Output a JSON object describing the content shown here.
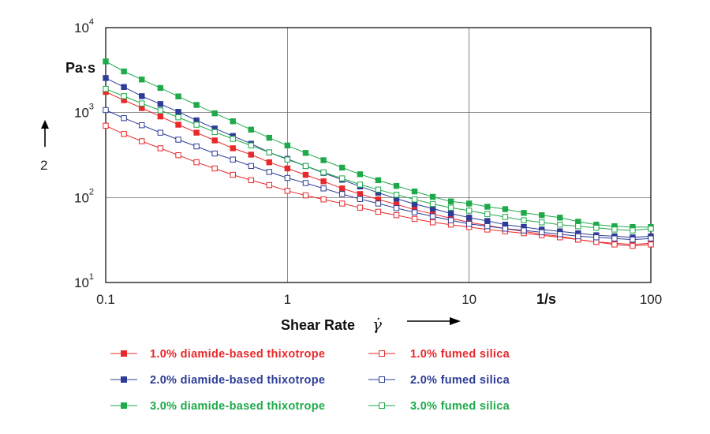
{
  "chart_data": {
    "type": "line",
    "scale": {
      "x": "log",
      "y": "log"
    },
    "xlim": [
      0.1,
      100
    ],
    "ylim": [
      10,
      10000
    ],
    "x_ticks": [
      {
        "value": 0.1,
        "label": "0.1"
      },
      {
        "value": 1,
        "label": "1"
      },
      {
        "value": 10,
        "label": "10"
      },
      {
        "value": 100,
        "label": "100"
      }
    ],
    "y_ticks": [
      {
        "value": 10,
        "base": "10",
        "exp": "1"
      },
      {
        "value": 100,
        "base": "10",
        "exp": "2"
      },
      {
        "value": 1000,
        "base": "10",
        "exp": "3"
      },
      {
        "value": 10000,
        "base": "10",
        "exp": "4"
      }
    ],
    "x_unit": "1/s",
    "y_unit": "Pa·s",
    "xlabel": "Shear Rate",
    "xlabel_symbol": "γ̇",
    "y_side_label": "2",
    "grid": true,
    "series": [
      {
        "name": "1.0% diamide-based thixotrope",
        "color": "#e8282b",
        "filled": true,
        "x": [
          0.1,
          0.126,
          0.158,
          0.2,
          0.251,
          0.316,
          0.398,
          0.501,
          0.631,
          0.794,
          1,
          1.26,
          1.58,
          2,
          2.51,
          3.16,
          3.98,
          5.01,
          6.31,
          7.94,
          10,
          12.6,
          15.8,
          20,
          25.1,
          31.6,
          39.8,
          50.1,
          63.1,
          79.4,
          100
        ],
        "y": [
          1750,
          1400,
          1130,
          900,
          720,
          580,
          470,
          380,
          320,
          260,
          220,
          185,
          155,
          128,
          110,
          95,
          83,
          72,
          64,
          57,
          51,
          47,
          43,
          40,
          37,
          35,
          32,
          30,
          29,
          28,
          29
        ]
      },
      {
        "name": "2.0% diamide-based thixotrope",
        "color": "#2d3c96",
        "filled": true,
        "x": [
          0.1,
          0.126,
          0.158,
          0.2,
          0.251,
          0.316,
          0.398,
          0.501,
          0.631,
          0.794,
          1,
          1.26,
          1.58,
          2,
          2.51,
          3.16,
          3.98,
          5.01,
          6.31,
          7.94,
          10,
          12.6,
          15.8,
          20,
          25.1,
          31.6,
          39.8,
          50.1,
          63.1,
          79.4,
          100
        ],
        "y": [
          2550,
          2000,
          1560,
          1260,
          1020,
          810,
          650,
          530,
          430,
          340,
          285,
          235,
          195,
          162,
          135,
          114,
          97,
          84,
          74,
          65,
          58,
          53,
          48,
          45,
          42,
          40,
          38,
          36,
          35,
          34,
          35
        ]
      },
      {
        "name": "3.0% diamide-based thixotrope",
        "color": "#1eaa4a",
        "filled": true,
        "x": [
          0.1,
          0.126,
          0.158,
          0.2,
          0.251,
          0.316,
          0.398,
          0.501,
          0.631,
          0.794,
          1,
          1.26,
          1.58,
          2,
          2.51,
          3.16,
          3.98,
          5.01,
          6.31,
          7.94,
          10,
          12.6,
          15.8,
          20,
          25.1,
          31.6,
          39.8,
          50.1,
          63.1,
          79.4,
          100
        ],
        "y": [
          4000,
          3050,
          2450,
          1950,
          1550,
          1230,
          980,
          790,
          630,
          505,
          410,
          335,
          275,
          225,
          188,
          160,
          137,
          118,
          102,
          90,
          85,
          78,
          73,
          66,
          62,
          58,
          52,
          48,
          46,
          45,
          45
        ]
      },
      {
        "name": "1.0% fumed silica",
        "color": "#e8282b",
        "filled": false,
        "x": [
          0.1,
          0.126,
          0.158,
          0.2,
          0.251,
          0.316,
          0.398,
          0.501,
          0.631,
          0.794,
          1,
          1.26,
          1.58,
          2,
          2.51,
          3.16,
          3.98,
          5.01,
          6.31,
          7.94,
          10,
          12.6,
          15.8,
          20,
          25.1,
          31.6,
          39.8,
          50.1,
          63.1,
          79.4,
          100
        ],
        "y": [
          700,
          560,
          460,
          380,
          315,
          260,
          220,
          185,
          160,
          140,
          120,
          106,
          95,
          85,
          76,
          68,
          62,
          56,
          51,
          48,
          45,
          42,
          40,
          38,
          36,
          34,
          32,
          30,
          28,
          27,
          28
        ]
      },
      {
        "name": "2.0% fumed silica",
        "color": "#2d3c96",
        "filled": false,
        "x": [
          0.1,
          0.126,
          0.158,
          0.2,
          0.251,
          0.316,
          0.398,
          0.501,
          0.631,
          0.794,
          1,
          1.26,
          1.58,
          2,
          2.51,
          3.16,
          3.98,
          5.01,
          6.31,
          7.94,
          10,
          12.6,
          15.8,
          20,
          25.1,
          31.6,
          39.8,
          50.1,
          63.1,
          79.4,
          100
        ],
        "y": [
          1070,
          860,
          710,
          580,
          480,
          400,
          330,
          280,
          235,
          200,
          170,
          148,
          128,
          110,
          96,
          85,
          75,
          67,
          60,
          54,
          49,
          46,
          43,
          41,
          39,
          37,
          35,
          34,
          33,
          32,
          33
        ]
      },
      {
        "name": "3.0% fumed silica",
        "color": "#1eaa4a",
        "filled": false,
        "x": [
          0.1,
          0.126,
          0.158,
          0.2,
          0.251,
          0.316,
          0.398,
          0.501,
          0.631,
          0.794,
          1,
          1.26,
          1.58,
          2,
          2.51,
          3.16,
          3.98,
          5.01,
          6.31,
          7.94,
          10,
          12.6,
          15.8,
          20,
          25.1,
          31.6,
          39.8,
          50.1,
          63.1,
          79.4,
          100
        ],
        "y": [
          1900,
          1560,
          1280,
          1060,
          880,
          720,
          590,
          490,
          410,
          340,
          280,
          235,
          198,
          168,
          142,
          124,
          108,
          95,
          84,
          76,
          70,
          64,
          59,
          54,
          51,
          48,
          46,
          44,
          42,
          41,
          43
        ]
      }
    ]
  }
}
